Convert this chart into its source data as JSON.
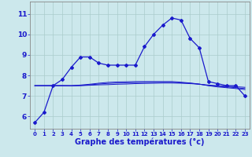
{
  "bg_color": "#cce8ec",
  "grid_color": "#aacccc",
  "line_color": "#1a1acc",
  "marker": "D",
  "marker_size": 2.0,
  "xlabel": "Graphe des températures (°c)",
  "xlabel_fontsize": 7,
  "yticks": [
    6,
    7,
    8,
    9,
    10,
    11
  ],
  "xtick_labels": [
    "0",
    "1",
    "2",
    "3",
    "4",
    "5",
    "6",
    "7",
    "8",
    "9",
    "10",
    "11",
    "12",
    "13",
    "14",
    "15",
    "16",
    "17",
    "18",
    "19",
    "20",
    "21",
    "22",
    "23"
  ],
  "ylim": [
    5.4,
    11.6
  ],
  "xlim": [
    -0.5,
    23.5
  ],
  "line1": [
    5.7,
    6.2,
    7.5,
    7.8,
    8.4,
    8.9,
    8.9,
    8.6,
    8.5,
    8.5,
    8.5,
    8.5,
    9.4,
    10.0,
    10.45,
    10.8,
    10.7,
    9.8,
    9.35,
    7.7,
    7.6,
    7.5,
    7.5,
    7.0
  ],
  "line2": [
    7.5,
    7.5,
    7.5,
    7.5,
    7.5,
    7.5,
    7.52,
    7.54,
    7.55,
    7.57,
    7.58,
    7.6,
    7.61,
    7.62,
    7.63,
    7.63,
    7.62,
    7.6,
    7.57,
    7.53,
    7.5,
    7.47,
    7.45,
    7.42
  ],
  "line3": [
    7.5,
    7.5,
    7.5,
    7.5,
    7.5,
    7.53,
    7.57,
    7.62,
    7.66,
    7.68,
    7.69,
    7.7,
    7.7,
    7.7,
    7.7,
    7.7,
    7.67,
    7.63,
    7.58,
    7.5,
    7.44,
    7.4,
    7.36,
    7.31
  ],
  "line4": [
    7.5,
    7.5,
    7.5,
    7.5,
    7.49,
    7.51,
    7.54,
    7.58,
    7.61,
    7.63,
    7.64,
    7.65,
    7.66,
    7.66,
    7.66,
    7.66,
    7.64,
    7.62,
    7.57,
    7.51,
    7.47,
    7.44,
    7.4,
    7.36
  ]
}
